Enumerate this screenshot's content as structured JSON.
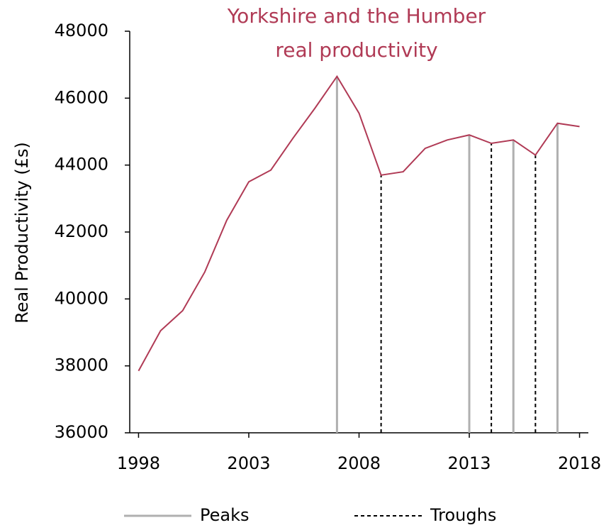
{
  "chart_data": {
    "type": "line",
    "title": [
      "Yorkshire and the Humber",
      "real productivity"
    ],
    "y_label": "Real Productivity (£s)",
    "x": [
      1998,
      1999,
      2000,
      2001,
      2002,
      2003,
      2004,
      2005,
      2006,
      2007,
      2008,
      2009,
      2010,
      2011,
      2012,
      2013,
      2014,
      2015,
      2016,
      2017,
      2018
    ],
    "series": [
      {
        "name": "Real productivity",
        "color": "#b03a55",
        "values": [
          37850,
          39050,
          39650,
          40800,
          42350,
          43500,
          43850,
          44800,
          45700,
          46650,
          45550,
          43700,
          43800,
          44500,
          44750,
          44900,
          44650,
          44750,
          44300,
          45250,
          45150
        ]
      }
    ],
    "markers": [
      {
        "name": "Peaks",
        "color": "#b0b0b0",
        "dash": false,
        "x": [
          2007,
          2013,
          2015,
          2017
        ]
      },
      {
        "name": "Troughs",
        "color": "#000000",
        "dash": true,
        "x": [
          2009,
          2014,
          2016
        ]
      }
    ],
    "xlim": [
      1997.6,
      2018.4
    ],
    "xticks": [
      1998,
      2003,
      2008,
      2013,
      2018
    ],
    "ylim": [
      36000,
      48000
    ],
    "yticks": [
      36000,
      38000,
      40000,
      42000,
      44000,
      46000,
      48000
    ]
  }
}
